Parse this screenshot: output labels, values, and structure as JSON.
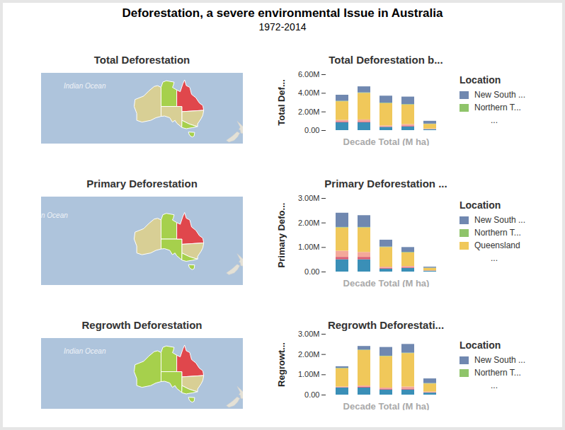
{
  "title": "Deforestation, a severe environmental Issue in Australia",
  "subtitle": "1972-2014",
  "chart_data": [
    {
      "type": "map",
      "title": "Total Deforestation",
      "label": "Indian Ocean",
      "colors": [
        "#d8cf95",
        "#a6d04c",
        "#d8cf95",
        "#e0474c",
        "#d8cf95",
        "#a6d04c",
        "#a6d04c"
      ]
    },
    {
      "type": "map",
      "title": "Primary Deforestation",
      "label": "n Ocean",
      "colors": [
        "#d8cf95",
        "#a6d04c",
        "#a6d04c",
        "#e0474c",
        "#d8cf95",
        "#a6d04c",
        "#a6d04c"
      ]
    },
    {
      "type": "map",
      "title": "Regrowth Deforestation",
      "label": "Indian Ocean",
      "colors": [
        "#a6d04c",
        "#a6d04c",
        "#a6d04c",
        "#e0474c",
        "#d8cf95",
        "#a6d04c",
        "#a6d04c"
      ]
    },
    {
      "type": "bar",
      "stacked": true,
      "title": "Total Deforestation b...",
      "y_label": "Total Def...",
      "x_label": "Decade Total (M ha)",
      "categories": [
        null,
        null,
        null,
        null,
        null
      ],
      "tick_labels": "y",
      "grid": false,
      "legend": "right",
      "legend_title": "Location",
      "legend_more": "...",
      "ylim": [
        0,
        6000000
      ],
      "yticks": [
        {
          "value": 0,
          "label": "0.00"
        },
        {
          "value": 2000000,
          "label": "2.00M"
        },
        {
          "value": 4000000,
          "label": "4.00M"
        },
        {
          "value": 6000000,
          "label": "6.00M"
        }
      ],
      "series": [
        {
          "name": null,
          "color": "#3a8fb7",
          "values": [
            850000,
            850000,
            350000,
            400000,
            100000
          ]
        },
        {
          "name": null,
          "color": "#d95f76",
          "values": [
            100000,
            100000,
            50000,
            100000,
            20000
          ]
        },
        {
          "name": null,
          "color": "#f4a89a",
          "values": [
            150000,
            200000,
            100000,
            150000,
            50000
          ]
        },
        {
          "name": null,
          "color": "#f0c85a",
          "values": [
            2000000,
            2850000,
            2400000,
            2100000,
            500000
          ]
        },
        {
          "name": "Northern T...",
          "color": "#8fc46a",
          "values": [
            50000,
            50000,
            50000,
            50000,
            30000
          ]
        },
        {
          "name": "New South ...",
          "color": "#7088b0",
          "values": [
            650000,
            650000,
            750000,
            800000,
            300000
          ]
        }
      ]
    },
    {
      "type": "bar",
      "stacked": true,
      "title": "Primary Deforestation ...",
      "y_label": "Primary Defo...",
      "x_label": "Decade Total (M ha)",
      "categories": [
        null,
        null,
        null,
        null,
        null
      ],
      "tick_labels": "y",
      "grid": false,
      "legend": "right",
      "legend_title": "Location",
      "legend_more": "...",
      "ylim": [
        0,
        3000000
      ],
      "yticks": [
        {
          "value": 0,
          "label": "0.00"
        },
        {
          "value": 1000000,
          "label": "1.00M"
        },
        {
          "value": 2000000,
          "label": "2.00M"
        },
        {
          "value": 3000000,
          "label": "3.00M"
        }
      ],
      "series": [
        {
          "name": null,
          "color": "#3a8fb7",
          "values": [
            500000,
            500000,
            120000,
            150000,
            30000
          ]
        },
        {
          "name": null,
          "color": "#d95f76",
          "values": [
            100000,
            100000,
            30000,
            30000,
            10000
          ]
        },
        {
          "name": null,
          "color": "#f4a89a",
          "values": [
            250000,
            200000,
            50000,
            50000,
            10000
          ]
        },
        {
          "name": "Queensland",
          "color": "#f0c85a",
          "values": [
            950000,
            1000000,
            800000,
            550000,
            100000
          ]
        },
        {
          "name": "Northern T...",
          "color": "#8fc46a",
          "values": [
            20000,
            20000,
            20000,
            20000,
            10000
          ]
        },
        {
          "name": "New South ...",
          "color": "#7088b0",
          "values": [
            580000,
            480000,
            280000,
            200000,
            40000
          ]
        }
      ]
    },
    {
      "type": "bar",
      "stacked": true,
      "title": "Regrowth Deforestati...",
      "y_label": "Regrowt...",
      "x_label": "Decade Total (M ha)",
      "categories": [
        null,
        null,
        null,
        null,
        null
      ],
      "tick_labels": "y",
      "grid": false,
      "legend": "right",
      "legend_title": "Location",
      "legend_more": "...",
      "ylim": [
        0,
        3000000
      ],
      "yticks": [
        {
          "value": 0,
          "label": "0.00"
        },
        {
          "value": 1000000,
          "label": "1.00M"
        },
        {
          "value": 2000000,
          "label": "2.00M"
        },
        {
          "value": 3000000,
          "label": "3.00M"
        }
      ],
      "series": [
        {
          "name": null,
          "color": "#3a8fb7",
          "values": [
            350000,
            350000,
            250000,
            250000,
            100000
          ]
        },
        {
          "name": null,
          "color": "#d95f76",
          "values": [
            20000,
            50000,
            50000,
            50000,
            20000
          ]
        },
        {
          "name": null,
          "color": "#f4a89a",
          "values": [
            30000,
            50000,
            50000,
            100000,
            30000
          ]
        },
        {
          "name": null,
          "color": "#f0c85a",
          "values": [
            900000,
            1750000,
            1550000,
            1650000,
            400000
          ]
        },
        {
          "name": "Northern T...",
          "color": "#8fc46a",
          "values": [
            20000,
            20000,
            20000,
            20000,
            20000
          ]
        },
        {
          "name": "New South ...",
          "color": "#7088b0",
          "values": [
            80000,
            180000,
            430000,
            430000,
            230000
          ]
        }
      ]
    }
  ]
}
